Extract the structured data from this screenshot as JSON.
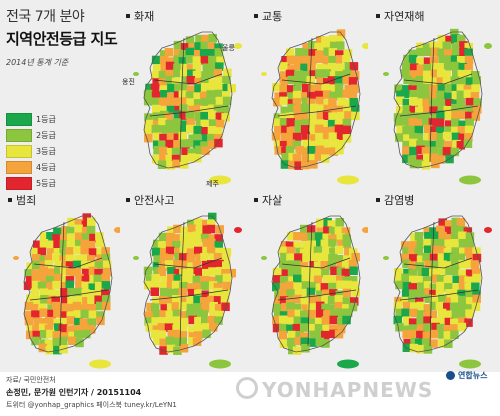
{
  "title": {
    "line1": "전국 7개 분야",
    "line2": "지역안전등급 지도",
    "basis": "2014년 통계 기준"
  },
  "legend": [
    {
      "label": "1등급",
      "color": "#1aa84a"
    },
    {
      "label": "2등급",
      "color": "#8cc63f"
    },
    {
      "label": "3등급",
      "color": "#e8e53c"
    },
    {
      "label": "4등급",
      "color": "#f5a33b"
    },
    {
      "label": "5등급",
      "color": "#e3262d"
    }
  ],
  "maps": [
    {
      "label": "화재"
    },
    {
      "label": "교통"
    },
    {
      "label": "자연재해"
    },
    {
      "label": "범죄"
    },
    {
      "label": "안전사고"
    },
    {
      "label": "자살"
    },
    {
      "label": "감염병"
    }
  ],
  "places": {
    "ulleung": "울릉",
    "ongjin": "옹진",
    "jeju": "제주"
  },
  "footer": {
    "source": "자료/ 국민안전처",
    "credit": "손정민, 문가원 인턴기자 / 20151104",
    "social": "트위터 @yonhap_graphics  페이스북 tuney.kr/LeYN1",
    "watermark": "YONHAPNEWS",
    "brand": "연합뉴스"
  }
}
